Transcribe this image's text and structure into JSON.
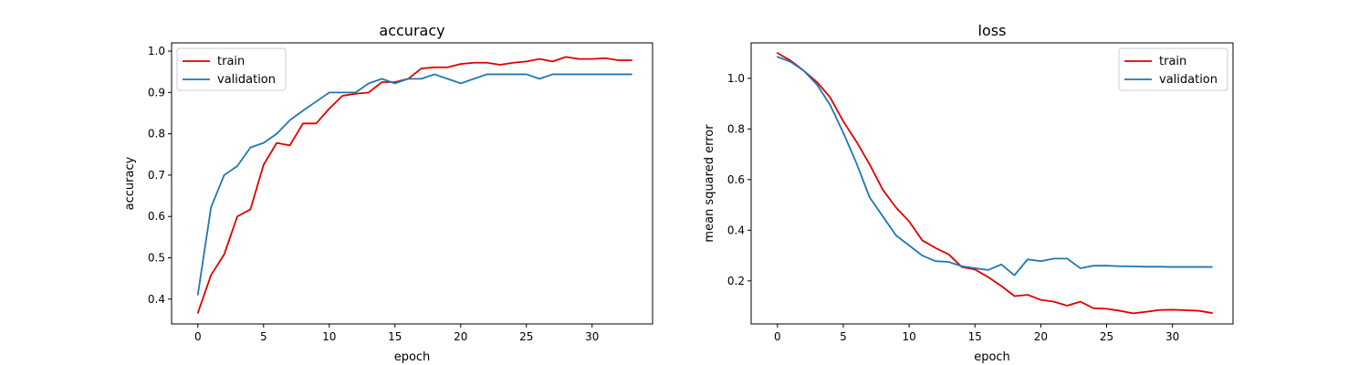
{
  "chart_data": [
    {
      "type": "line",
      "title": "accuracy",
      "xlabel": "epoch",
      "ylabel": "accuracy",
      "xlim": [
        -2.0,
        34.6
      ],
      "ylim": [
        0.34,
        1.02
      ],
      "xticks": [
        0,
        5,
        10,
        15,
        20,
        25,
        30
      ],
      "yticks": [
        0.4,
        0.5,
        0.6,
        0.7,
        0.8,
        0.9,
        1.0
      ],
      "xtick_labels": [
        "0",
        "5",
        "10",
        "15",
        "20",
        "25",
        "30"
      ],
      "ytick_labels": [
        "0.4",
        "0.5",
        "0.6",
        "0.7",
        "0.8",
        "0.9",
        "1.0"
      ],
      "legend_position": "top-left",
      "grid": false,
      "x": [
        0,
        1,
        2,
        3,
        4,
        5,
        6,
        7,
        8,
        9,
        10,
        11,
        12,
        13,
        14,
        15,
        16,
        17,
        18,
        19,
        20,
        21,
        22,
        23,
        24,
        25,
        26,
        27,
        28,
        29,
        30,
        31,
        32,
        33
      ],
      "series": [
        {
          "name": "train",
          "color": "#e00000",
          "values": [
            0.367,
            0.458,
            0.508,
            0.6,
            0.617,
            0.725,
            0.778,
            0.772,
            0.825,
            0.825,
            0.861,
            0.892,
            0.897,
            0.9,
            0.925,
            0.925,
            0.933,
            0.958,
            0.961,
            0.961,
            0.969,
            0.972,
            0.972,
            0.967,
            0.972,
            0.975,
            0.981,
            0.975,
            0.986,
            0.981,
            0.981,
            0.983,
            0.978,
            0.978
          ]
        },
        {
          "name": "validation",
          "color": "#1f77b4",
          "values": [
            0.411,
            0.622,
            0.7,
            0.722,
            0.767,
            0.778,
            0.8,
            0.833,
            0.856,
            0.878,
            0.9,
            0.9,
            0.9,
            0.922,
            0.933,
            0.922,
            0.933,
            0.933,
            0.944,
            0.933,
            0.922,
            0.933,
            0.944,
            0.944,
            0.944,
            0.944,
            0.933,
            0.944,
            0.944,
            0.944,
            0.944,
            0.944,
            0.944,
            0.944
          ]
        }
      ]
    },
    {
      "type": "line",
      "title": "loss",
      "xlabel": "epoch",
      "ylabel": "mean squared error",
      "xlim": [
        -2.0,
        34.6
      ],
      "ylim": [
        0.03,
        1.14
      ],
      "xticks": [
        0,
        5,
        10,
        15,
        20,
        25,
        30
      ],
      "yticks": [
        0.2,
        0.4,
        0.6,
        0.8,
        1.0
      ],
      "xtick_labels": [
        "0",
        "5",
        "10",
        "15",
        "20",
        "25",
        "30"
      ],
      "ytick_labels": [
        "0.2",
        "0.4",
        "0.6",
        "0.8",
        "1.0"
      ],
      "legend_position": "top-right",
      "grid": false,
      "x": [
        0,
        1,
        2,
        3,
        4,
        5,
        6,
        7,
        8,
        9,
        10,
        11,
        12,
        13,
        14,
        15,
        16,
        17,
        18,
        19,
        20,
        21,
        22,
        23,
        24,
        25,
        26,
        27,
        28,
        29,
        30,
        31,
        32,
        33
      ],
      "series": [
        {
          "name": "train",
          "color": "#e00000",
          "values": [
            1.1,
            1.07,
            1.03,
            0.985,
            0.925,
            0.83,
            0.75,
            0.66,
            0.56,
            0.49,
            0.435,
            0.36,
            0.33,
            0.305,
            0.255,
            0.245,
            0.215,
            0.18,
            0.14,
            0.145,
            0.125,
            0.118,
            0.102,
            0.118,
            0.092,
            0.09,
            0.082,
            0.072,
            0.078,
            0.085,
            0.086,
            0.084,
            0.082,
            0.073
          ]
        },
        {
          "name": "validation",
          "color": "#1f77b4",
          "values": [
            1.085,
            1.065,
            1.03,
            0.975,
            0.895,
            0.785,
            0.665,
            0.53,
            0.455,
            0.38,
            0.34,
            0.3,
            0.278,
            0.275,
            0.258,
            0.25,
            0.243,
            0.265,
            0.222,
            0.285,
            0.278,
            0.288,
            0.288,
            0.25,
            0.26,
            0.26,
            0.258,
            0.257,
            0.256,
            0.256,
            0.255,
            0.255,
            0.255,
            0.255
          ]
        }
      ]
    }
  ]
}
